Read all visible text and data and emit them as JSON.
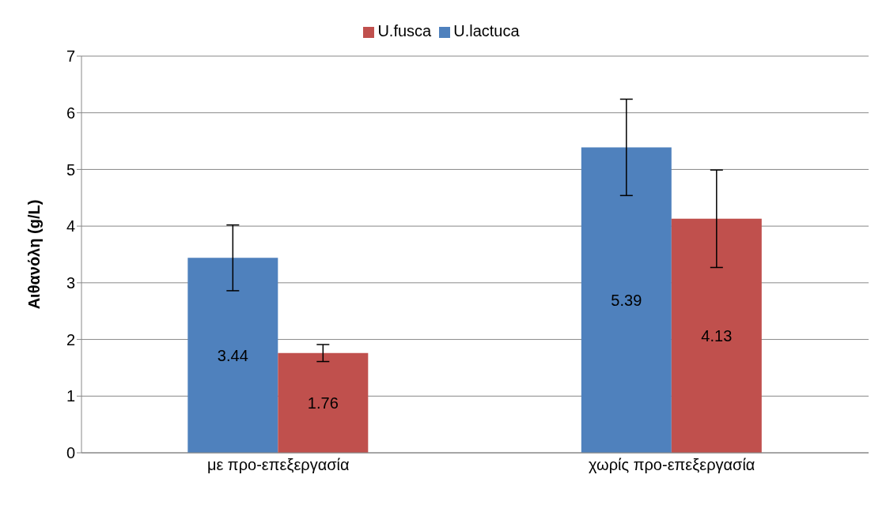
{
  "chart_data": {
    "type": "bar",
    "ylabel": "Αιθανόλη (g/L)",
    "categories": [
      "με προ-επεξεργασία",
      "χωρίς προ-επεξεργασία"
    ],
    "series": [
      {
        "name": "U.lactuca",
        "color": "#4f81bd",
        "values": [
          3.44,
          5.39
        ],
        "errors": [
          0.58,
          0.85
        ]
      },
      {
        "name": "U.fusca",
        "color": "#c0504d",
        "values": [
          1.76,
          4.13
        ],
        "errors": [
          0.15,
          0.86
        ]
      }
    ],
    "ylim": [
      0,
      7
    ],
    "yticks": [
      0,
      1,
      2,
      3,
      4,
      5,
      6,
      7
    ],
    "grid": "y",
    "legend": "top",
    "data_labels": true
  }
}
